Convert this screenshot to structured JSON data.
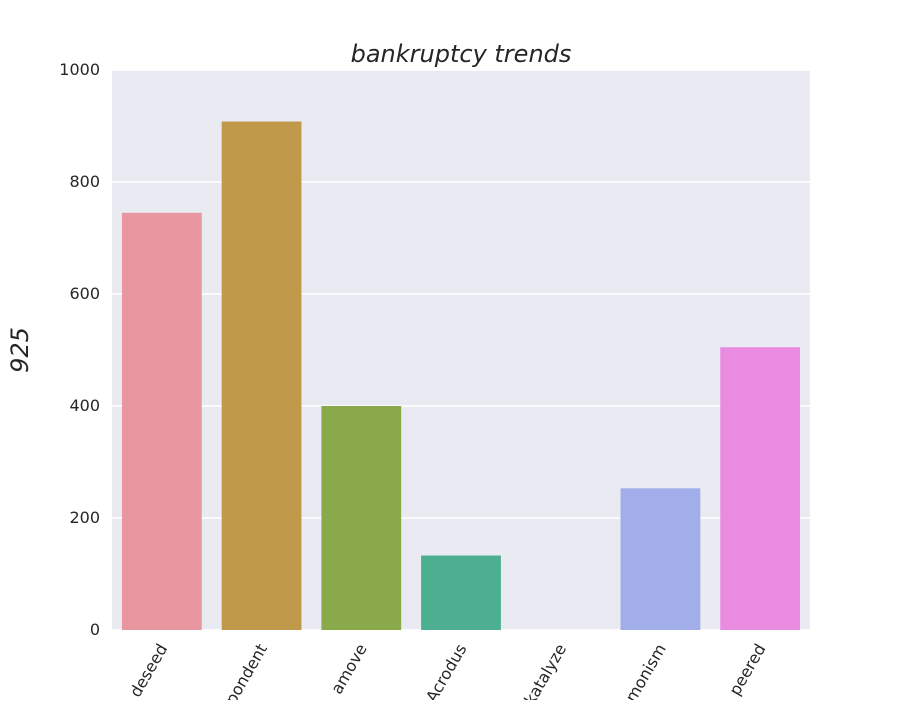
{
  "chart_data": {
    "type": "bar",
    "title": "bankruptcy trends",
    "xlabel": "",
    "ylabel": "925",
    "ylim": [
      0,
      1000
    ],
    "yticks": [
      0,
      200,
      400,
      600,
      800,
      1000
    ],
    "categories": [
      "deseed",
      "pondent",
      "amove",
      "Acrodus",
      "katalyze",
      "monism",
      "peered"
    ],
    "values": [
      745,
      908,
      400,
      133,
      0,
      253,
      505
    ],
    "colors": [
      "#e8969f",
      "#c09a4a",
      "#8aa94b",
      "#4caf8f",
      "#5aa9c9",
      "#a1aeea",
      "#e98be0"
    ],
    "grid": true,
    "legend": "none",
    "background": "#eaeaf2"
  }
}
